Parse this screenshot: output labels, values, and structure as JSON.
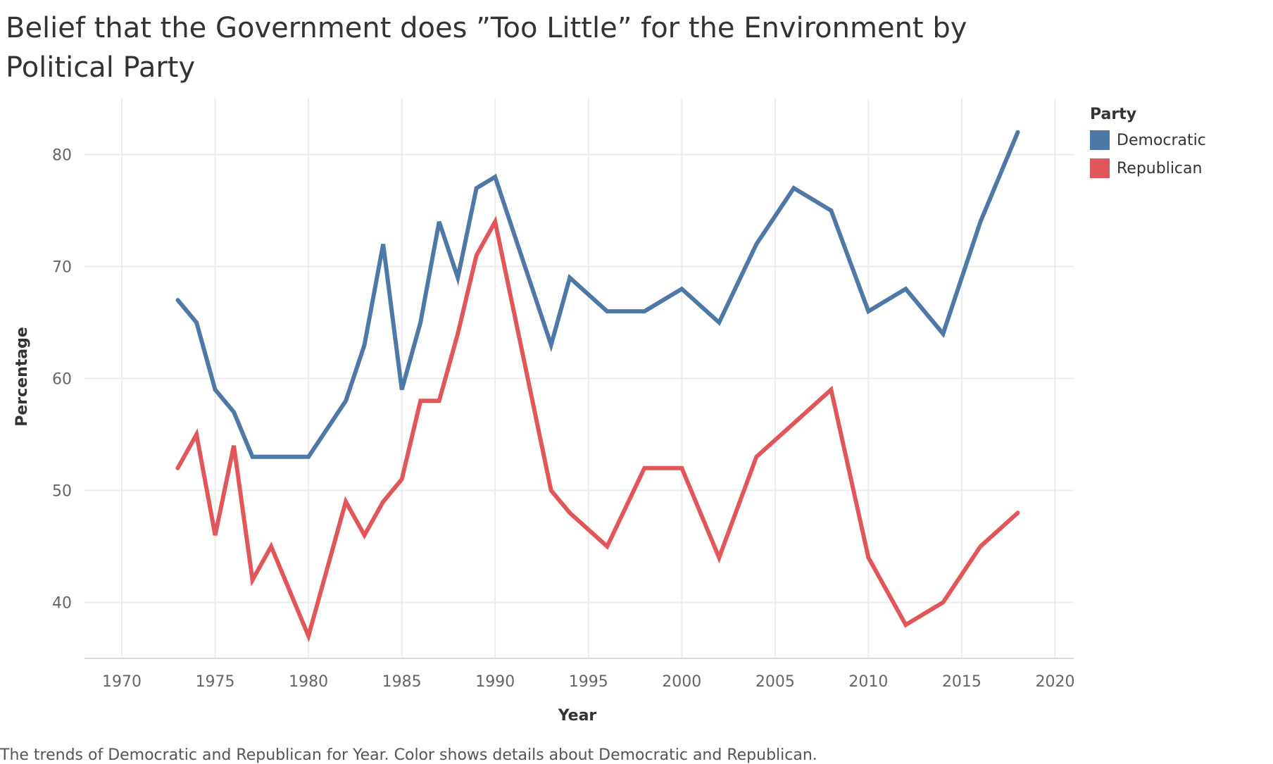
{
  "title": "Belief that the Government does ”Too Little” for the Environment by Political Party",
  "caption": "The trends of Democratic and Republican for Year.  Color shows details about Democratic and Republican.",
  "legend": {
    "title": "Party",
    "items": [
      {
        "label": "Democratic",
        "color": "#4e79a7"
      },
      {
        "label": "Republican",
        "color": "#e15759"
      }
    ]
  },
  "chart_data": {
    "type": "line",
    "xlabel": "Year",
    "ylabel": "Percentage",
    "xlim": [
      1968,
      2021
    ],
    "ylim": [
      35,
      85
    ],
    "xticks": [
      1970,
      1975,
      1980,
      1985,
      1990,
      1995,
      2000,
      2005,
      2010,
      2015,
      2020
    ],
    "yticks": [
      40,
      50,
      60,
      70,
      80
    ],
    "grid": true,
    "legend_position": "right",
    "series": [
      {
        "name": "Democratic",
        "color": "#4e79a7",
        "x": [
          1973,
          1974,
          1975,
          1976,
          1977,
          1978,
          1980,
          1982,
          1983,
          1984,
          1985,
          1986,
          1987,
          1988,
          1989,
          1990,
          1993,
          1994,
          1996,
          1998,
          2000,
          2002,
          2004,
          2006,
          2008,
          2010,
          2012,
          2014,
          2016,
          2018
        ],
        "y": [
          67,
          65,
          59,
          57,
          53,
          53,
          53,
          58,
          63,
          72,
          59,
          65,
          74,
          69,
          77,
          78,
          63,
          69,
          66,
          66,
          68,
          65,
          72,
          77,
          75,
          66,
          68,
          64,
          74,
          82
        ]
      },
      {
        "name": "Republican",
        "color": "#e15759",
        "x": [
          1973,
          1974,
          1975,
          1976,
          1977,
          1978,
          1980,
          1982,
          1983,
          1984,
          1985,
          1986,
          1987,
          1988,
          1989,
          1990,
          1993,
          1994,
          1996,
          1998,
          2000,
          2002,
          2004,
          2006,
          2008,
          2010,
          2012,
          2014,
          2016,
          2018
        ],
        "y": [
          52,
          55,
          46,
          54,
          42,
          45,
          37,
          49,
          46,
          49,
          51,
          58,
          58,
          64,
          71,
          74,
          50,
          48,
          45,
          52,
          52,
          44,
          53,
          56,
          59,
          44,
          38,
          40,
          45,
          48
        ]
      }
    ]
  }
}
